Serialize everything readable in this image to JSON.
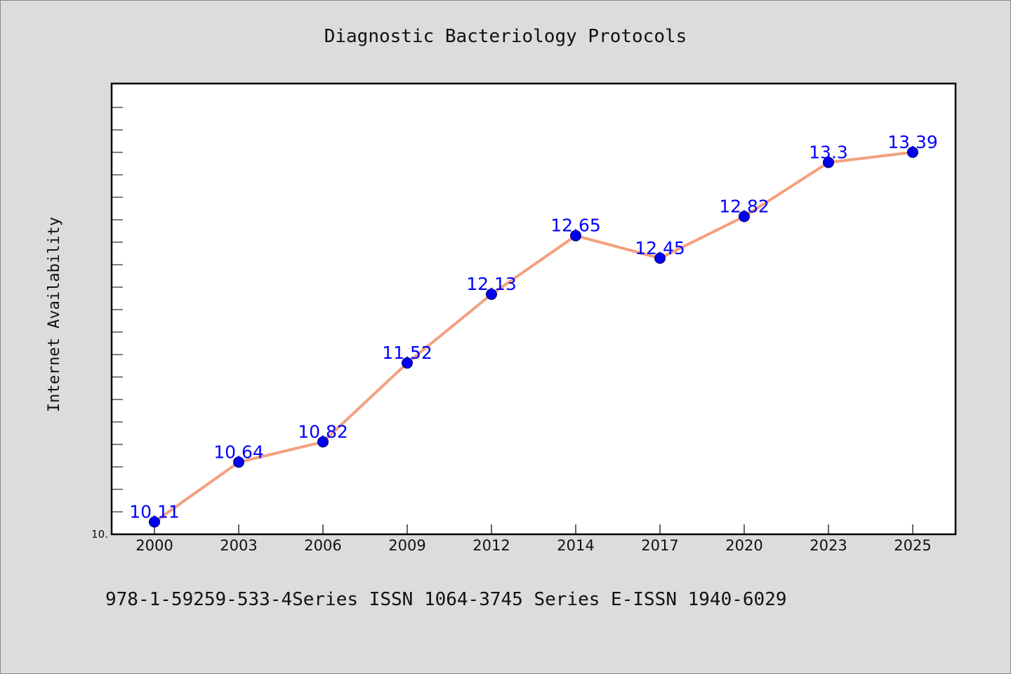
{
  "colors": {
    "background": "#dcdcdc",
    "plot_background": "#ffffff",
    "line": "#f4a07e",
    "marker": "#0000ee",
    "data_label": "#0000ff"
  },
  "footer": {
    "text": "978-1-59259-533-4Series ISSN 1064-3745 Series E-ISSN 1940-6029"
  },
  "chart_data": {
    "type": "line",
    "title": "Diagnostic Bacteriology Protocols",
    "xlabel": "",
    "ylabel": "Internet Availability",
    "categories": [
      "2000",
      "2003",
      "2006",
      "2009",
      "2012",
      "2014",
      "2017",
      "2020",
      "2023",
      "2025"
    ],
    "series": [
      {
        "values": [
          10.11,
          10.64,
          10.82,
          11.52,
          12.13,
          12.65,
          12.45,
          12.82,
          13.3,
          13.39
        ]
      }
    ],
    "data_labels": [
      "10.11",
      "10.64",
      "10.82",
      "11.52",
      "12.13",
      "12.65",
      "12.45",
      "12.82",
      "13.3",
      "13.39"
    ],
    "y_tick_label": "10.",
    "ylim": [
      10.0,
      14.0
    ],
    "grid": false,
    "legend": "none"
  }
}
